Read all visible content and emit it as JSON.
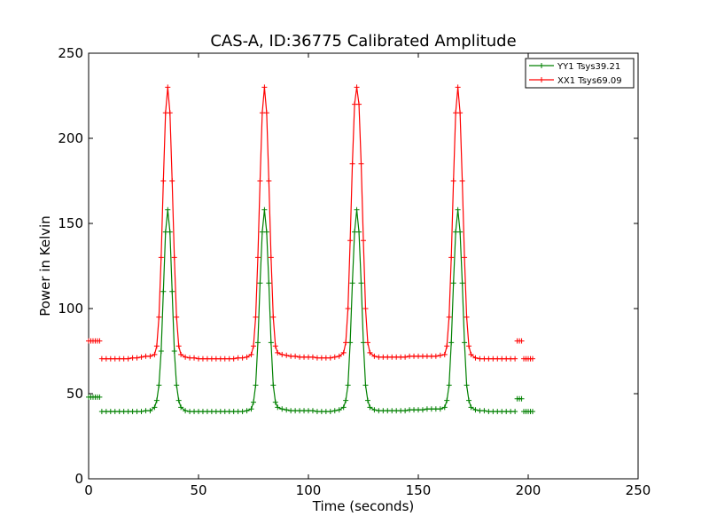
{
  "chart_data": {
    "type": "line",
    "title": "CAS-A, ID:36775 Calibrated Amplitude",
    "xlabel": "Time (seconds)",
    "ylabel": "Power in Kelvin",
    "xlim": [
      0,
      250
    ],
    "ylim": [
      0,
      250
    ],
    "xticks": [
      "0",
      "50",
      "100",
      "150",
      "200",
      "250"
    ],
    "yticks": [
      "0",
      "50",
      "100",
      "150",
      "200",
      "250"
    ],
    "grid": false,
    "legend_position": "top-right",
    "series": [
      {
        "name": "YY1 Tsys39.21",
        "color": "#008000",
        "marker": "plus",
        "segments": [
          [
            [
              0,
              48
            ],
            [
              1,
              48
            ],
            [
              2,
              48
            ],
            [
              3,
              48
            ],
            [
              4,
              48
            ],
            [
              5,
              48
            ]
          ],
          [
            [
              6,
              39.5
            ],
            [
              8,
              39.5
            ],
            [
              10,
              39.5
            ],
            [
              12,
              39.5
            ],
            [
              14,
              39.5
            ],
            [
              16,
              39.5
            ],
            [
              18,
              39.5
            ],
            [
              20,
              39.5
            ],
            [
              22,
              39.5
            ],
            [
              24,
              39.5
            ],
            [
              26,
              40
            ],
            [
              28,
              40
            ],
            [
              30,
              42
            ],
            [
              31,
              46
            ],
            [
              32,
              55
            ],
            [
              33,
              75
            ],
            [
              34,
              110
            ],
            [
              35,
              145
            ],
            [
              36,
              158
            ],
            [
              37,
              145
            ],
            [
              38,
              110
            ],
            [
              39,
              75
            ],
            [
              40,
              55
            ],
            [
              41,
              46
            ],
            [
              42,
              42
            ],
            [
              44,
              40
            ],
            [
              46,
              39.5
            ],
            [
              48,
              39.5
            ],
            [
              50,
              39.5
            ],
            [
              52,
              39.5
            ],
            [
              54,
              39.5
            ],
            [
              56,
              39.5
            ],
            [
              58,
              39.5
            ],
            [
              60,
              39.5
            ],
            [
              62,
              39.5
            ],
            [
              64,
              39.5
            ],
            [
              66,
              39.5
            ],
            [
              68,
              39.5
            ],
            [
              70,
              39.5
            ],
            [
              72,
              40
            ],
            [
              74,
              41
            ],
            [
              75,
              45
            ],
            [
              76,
              55
            ],
            [
              77,
              80
            ],
            [
              78,
              115
            ],
            [
              79,
              145
            ],
            [
              80,
              158
            ],
            [
              81,
              145
            ],
            [
              82,
              115
            ],
            [
              83,
              80
            ],
            [
              84,
              55
            ],
            [
              85,
              45
            ],
            [
              86,
              42
            ],
            [
              88,
              41
            ],
            [
              90,
              40.5
            ],
            [
              92,
              40
            ],
            [
              94,
              40
            ],
            [
              96,
              40
            ],
            [
              98,
              40
            ],
            [
              100,
              40
            ],
            [
              102,
              40
            ],
            [
              104,
              39.5
            ],
            [
              106,
              39.5
            ],
            [
              108,
              39.5
            ],
            [
              110,
              39.5
            ],
            [
              112,
              40
            ],
            [
              114,
              40.5
            ],
            [
              116,
              42
            ],
            [
              117,
              46
            ],
            [
              118,
              55
            ],
            [
              119,
              80
            ],
            [
              120,
              115
            ],
            [
              121,
              145
            ],
            [
              122,
              158
            ],
            [
              123,
              145
            ],
            [
              124,
              115
            ],
            [
              125,
              80
            ],
            [
              126,
              55
            ],
            [
              127,
              46
            ],
            [
              128,
              42
            ],
            [
              130,
              40.5
            ],
            [
              132,
              40
            ],
            [
              134,
              40
            ],
            [
              136,
              40
            ],
            [
              138,
              40
            ],
            [
              140,
              40
            ],
            [
              142,
              40
            ],
            [
              144,
              40
            ],
            [
              146,
              40.5
            ],
            [
              148,
              40.5
            ],
            [
              150,
              40.5
            ],
            [
              152,
              40.5
            ],
            [
              154,
              41
            ],
            [
              156,
              41
            ],
            [
              158,
              41
            ],
            [
              160,
              41
            ],
            [
              162,
              42
            ],
            [
              163,
              46
            ],
            [
              164,
              55
            ],
            [
              165,
              80
            ],
            [
              166,
              115
            ],
            [
              167,
              145
            ],
            [
              168,
              158
            ],
            [
              169,
              145
            ],
            [
              170,
              115
            ],
            [
              171,
              80
            ],
            [
              172,
              55
            ],
            [
              173,
              46
            ],
            [
              174,
              42
            ],
            [
              176,
              40.5
            ],
            [
              178,
              40
            ],
            [
              180,
              40
            ],
            [
              182,
              39.5
            ],
            [
              184,
              39.5
            ],
            [
              186,
              39.5
            ],
            [
              188,
              39.5
            ],
            [
              190,
              39.5
            ],
            [
              192,
              39.5
            ],
            [
              194,
              39.5
            ]
          ],
          [
            [
              195,
              47
            ],
            [
              196,
              47
            ],
            [
              197,
              47
            ]
          ],
          [
            [
              198,
              39.5
            ],
            [
              199,
              39.5
            ],
            [
              200,
              39.5
            ],
            [
              201,
              39.5
            ],
            [
              202,
              39.5
            ]
          ]
        ]
      },
      {
        "name": "XX1 Tsys69.09",
        "color": "#ff0000",
        "marker": "plus",
        "segments": [
          [
            [
              0,
              81
            ],
            [
              1,
              81
            ],
            [
              2,
              81
            ],
            [
              3,
              81
            ],
            [
              4,
              81
            ],
            [
              5,
              81
            ]
          ],
          [
            [
              6,
              70.5
            ],
            [
              8,
              70.5
            ],
            [
              10,
              70.5
            ],
            [
              12,
              70.5
            ],
            [
              14,
              70.5
            ],
            [
              16,
              70.5
            ],
            [
              18,
              70.5
            ],
            [
              20,
              71
            ],
            [
              22,
              71
            ],
            [
              24,
              71.5
            ],
            [
              26,
              72
            ],
            [
              28,
              72
            ],
            [
              30,
              73
            ],
            [
              31,
              78
            ],
            [
              32,
              95
            ],
            [
              33,
              130
            ],
            [
              34,
              175
            ],
            [
              35,
              215
            ],
            [
              36,
              230
            ],
            [
              37,
              215
            ],
            [
              38,
              175
            ],
            [
              39,
              130
            ],
            [
              40,
              95
            ],
            [
              41,
              78
            ],
            [
              42,
              73
            ],
            [
              44,
              71.5
            ],
            [
              46,
              71
            ],
            [
              48,
              71
            ],
            [
              50,
              70.5
            ],
            [
              52,
              70.5
            ],
            [
              54,
              70.5
            ],
            [
              56,
              70.5
            ],
            [
              58,
              70.5
            ],
            [
              60,
              70.5
            ],
            [
              62,
              70.5
            ],
            [
              64,
              70.5
            ],
            [
              66,
              70.5
            ],
            [
              68,
              71
            ],
            [
              70,
              71
            ],
            [
              72,
              71.5
            ],
            [
              74,
              73
            ],
            [
              75,
              78
            ],
            [
              76,
              95
            ],
            [
              77,
              130
            ],
            [
              78,
              175
            ],
            [
              79,
              215
            ],
            [
              80,
              230
            ],
            [
              81,
              215
            ],
            [
              82,
              175
            ],
            [
              83,
              130
            ],
            [
              84,
              95
            ],
            [
              85,
              78
            ],
            [
              86,
              74
            ],
            [
              88,
              73
            ],
            [
              90,
              72.5
            ],
            [
              92,
              72
            ],
            [
              94,
              72
            ],
            [
              96,
              71.5
            ],
            [
              98,
              71.5
            ],
            [
              100,
              71.5
            ],
            [
              102,
              71.5
            ],
            [
              104,
              71
            ],
            [
              106,
              71
            ],
            [
              108,
              71
            ],
            [
              110,
              71
            ],
            [
              112,
              71.5
            ],
            [
              114,
              72
            ],
            [
              116,
              74
            ],
            [
              117,
              80
            ],
            [
              118,
              100
            ],
            [
              119,
              140
            ],
            [
              120,
              185
            ],
            [
              121,
              220
            ],
            [
              122,
              230
            ],
            [
              123,
              220
            ],
            [
              124,
              185
            ],
            [
              125,
              140
            ],
            [
              126,
              100
            ],
            [
              127,
              80
            ],
            [
              128,
              74
            ],
            [
              130,
              72
            ],
            [
              132,
              71.5
            ],
            [
              134,
              71.5
            ],
            [
              136,
              71.5
            ],
            [
              138,
              71.5
            ],
            [
              140,
              71.5
            ],
            [
              142,
              71.5
            ],
            [
              144,
              71.5
            ],
            [
              146,
              72
            ],
            [
              148,
              72
            ],
            [
              150,
              72
            ],
            [
              152,
              72
            ],
            [
              154,
              72
            ],
            [
              156,
              72
            ],
            [
              158,
              72
            ],
            [
              160,
              72.5
            ],
            [
              162,
              73
            ],
            [
              163,
              78
            ],
            [
              164,
              95
            ],
            [
              165,
              130
            ],
            [
              166,
              175
            ],
            [
              167,
              215
            ],
            [
              168,
              230
            ],
            [
              169,
              215
            ],
            [
              170,
              175
            ],
            [
              171,
              130
            ],
            [
              172,
              95
            ],
            [
              173,
              78
            ],
            [
              174,
              73
            ],
            [
              176,
              71
            ],
            [
              178,
              70.5
            ],
            [
              180,
              70.5
            ],
            [
              182,
              70.5
            ],
            [
              184,
              70.5
            ],
            [
              186,
              70.5
            ],
            [
              188,
              70.5
            ],
            [
              190,
              70.5
            ],
            [
              192,
              70.5
            ],
            [
              194,
              70.5
            ]
          ],
          [
            [
              195,
              81
            ],
            [
              196,
              81
            ],
            [
              197,
              81
            ]
          ],
          [
            [
              198,
              70.5
            ],
            [
              199,
              70.5
            ],
            [
              200,
              70.5
            ],
            [
              201,
              70.5
            ],
            [
              202,
              70.5
            ]
          ]
        ]
      }
    ]
  }
}
